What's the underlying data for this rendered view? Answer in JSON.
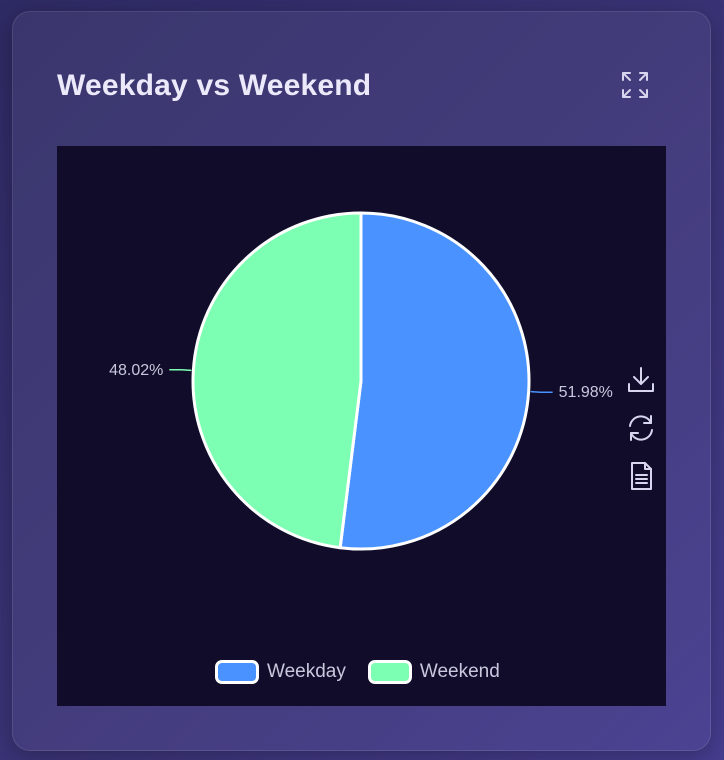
{
  "card": {
    "title": "Weekday vs Weekend"
  },
  "icons": {
    "expand": "expand-icon",
    "download": "download-icon",
    "refresh": "refresh-icon",
    "data_view": "document-icon"
  },
  "colors": {
    "weekday": "#4992ff",
    "weekend": "#7cffb2",
    "panel_bg": "#100c2a"
  },
  "chart_data": {
    "type": "pie",
    "title": "Weekday vs Weekend",
    "legend_position": "bottom-center",
    "slices": [
      {
        "name": "Weekday",
        "value": 51.98,
        "label": "51.98%",
        "color": "#4992ff"
      },
      {
        "name": "Weekend",
        "value": 48.02,
        "label": "48.02%",
        "color": "#7cffb2"
      }
    ]
  }
}
